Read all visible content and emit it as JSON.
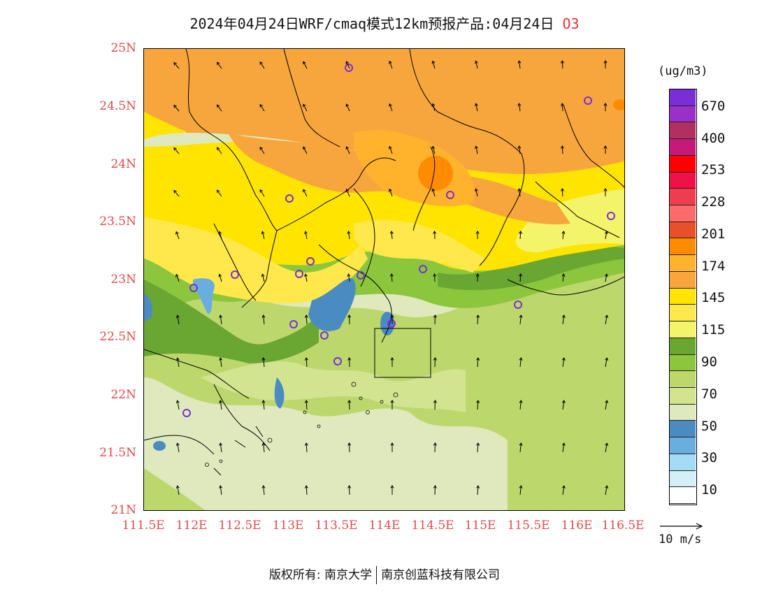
{
  "title": {
    "main": "2024年04月24日WRF/cmaq模式12km预报产品:04月24日",
    "species": "O3"
  },
  "axes": {
    "lat_labels": [
      "25N",
      "24.5N",
      "24N",
      "23.5N",
      "23N",
      "22.5N",
      "22N",
      "21.5N",
      "21N"
    ],
    "lon_labels": [
      "111.5E",
      "112E",
      "112.5E",
      "113E",
      "113.5E",
      "114E",
      "114.5E",
      "115E",
      "115.5E",
      "116E",
      "116.5E"
    ],
    "lat_range": [
      21,
      25
    ],
    "lon_range": [
      111.5,
      116.5
    ]
  },
  "colorbar": {
    "unit": "(ug/m3)",
    "labels": [
      "670",
      "400",
      "253",
      "228",
      "201",
      "174",
      "145",
      "115",
      "90",
      "70",
      "50",
      "30",
      "10"
    ],
    "colors": [
      "#7a2fd6",
      "#9a30c8",
      "#b03060",
      "#c41a7a",
      "#ff0000",
      "#f0104a",
      "#f03c50",
      "#ff6a6a",
      "#e8502a",
      "#ff8c00",
      "#ffb22c",
      "#f7a63e",
      "#ffe400",
      "#ffe84c",
      "#f4f46a",
      "#6aa632",
      "#8cc63c",
      "#bcd86c",
      "#d2e490",
      "#dfe9bd",
      "#4a8cc2",
      "#6aaee0",
      "#a4dcf6",
      "#d4eff8",
      "#ffffff"
    ]
  },
  "wind_reference": {
    "label": "10 m/s"
  },
  "footer": {
    "left": "版权所有: 南京大学",
    "right": "南京创蓝科技有限公司"
  }
}
